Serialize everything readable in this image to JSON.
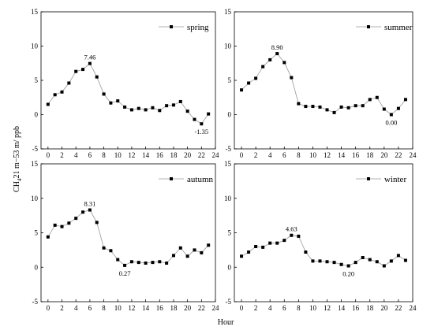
{
  "figure": {
    "shared_xlabel": "Hour",
    "shared_ylabel_main": "CH",
    "shared_ylabel_sub": "4",
    "shared_ylabel_rest": "21 m−53 m/ ppb"
  },
  "chart_data": [
    {
      "type": "line",
      "panel": "top-left",
      "series": [
        {
          "name": "spring",
          "x": [
            0,
            1,
            2,
            3,
            4,
            5,
            6,
            7,
            8,
            9,
            10,
            11,
            12,
            13,
            14,
            15,
            16,
            17,
            18,
            19,
            20,
            21,
            22,
            23
          ],
          "values": [
            1.5,
            2.9,
            3.3,
            4.6,
            6.3,
            6.6,
            7.46,
            5.5,
            3.0,
            1.7,
            2.0,
            1.1,
            0.7,
            0.9,
            0.7,
            1.0,
            0.6,
            1.3,
            1.4,
            1.9,
            0.5,
            -0.7,
            -1.35,
            0.1
          ]
        }
      ],
      "annotations": [
        {
          "x": 6,
          "y": 7.46,
          "text": "7.46"
        },
        {
          "x": 22,
          "y": -1.35,
          "text": "-1.35"
        }
      ],
      "xlim": [
        -1,
        24
      ],
      "ylim": [
        -5,
        15
      ],
      "xticks": [
        0,
        2,
        4,
        6,
        8,
        10,
        12,
        14,
        16,
        18,
        20,
        22,
        24
      ],
      "yticks": [
        -5,
        0,
        5,
        10,
        15
      ],
      "legend_position": "top-right",
      "marker_color": "#000000",
      "line_color": "#999999"
    },
    {
      "type": "line",
      "panel": "top-right",
      "series": [
        {
          "name": "summer",
          "x": [
            0,
            1,
            2,
            3,
            4,
            5,
            6,
            7,
            8,
            9,
            10,
            11,
            12,
            13,
            14,
            15,
            16,
            17,
            18,
            19,
            20,
            21,
            22,
            23
          ],
          "values": [
            3.6,
            4.6,
            5.3,
            7.0,
            8.0,
            8.9,
            7.6,
            5.4,
            1.6,
            1.2,
            1.2,
            1.1,
            0.7,
            0.3,
            1.1,
            1.0,
            1.3,
            1.3,
            2.2,
            2.5,
            0.8,
            0.0,
            0.9,
            2.2
          ]
        }
      ],
      "annotations": [
        {
          "x": 5,
          "y": 8.9,
          "text": "8.90"
        },
        {
          "x": 21,
          "y": 0.0,
          "text": "0.00"
        }
      ],
      "xlim": [
        -1,
        24
      ],
      "ylim": [
        -5,
        15
      ],
      "xticks": [
        0,
        2,
        4,
        6,
        8,
        10,
        12,
        14,
        16,
        18,
        20,
        22,
        24
      ],
      "yticks": [
        -5,
        0,
        5,
        10,
        15
      ],
      "legend_position": "top-right",
      "marker_color": "#000000",
      "line_color": "#999999"
    },
    {
      "type": "line",
      "panel": "bottom-left",
      "series": [
        {
          "name": "autumn",
          "x": [
            0,
            1,
            2,
            3,
            4,
            5,
            6,
            7,
            8,
            9,
            10,
            11,
            12,
            13,
            14,
            15,
            16,
            17,
            18,
            19,
            20,
            21,
            22,
            23
          ],
          "values": [
            4.4,
            6.1,
            5.9,
            6.4,
            7.1,
            8.0,
            8.31,
            6.5,
            2.8,
            2.4,
            1.1,
            0.27,
            0.8,
            0.7,
            0.6,
            0.7,
            0.8,
            0.6,
            1.7,
            2.8,
            1.6,
            2.5,
            2.1,
            3.2
          ]
        }
      ],
      "annotations": [
        {
          "x": 6,
          "y": 8.31,
          "text": "8.31"
        },
        {
          "x": 11,
          "y": 0.27,
          "text": "0.27"
        }
      ],
      "xlim": [
        -1,
        24
      ],
      "ylim": [
        -5,
        15
      ],
      "xticks": [
        0,
        2,
        4,
        6,
        8,
        10,
        12,
        14,
        16,
        18,
        20,
        22,
        24
      ],
      "yticks": [
        -5,
        0,
        5,
        10,
        15
      ],
      "legend_position": "top-right",
      "marker_color": "#000000",
      "line_color": "#999999"
    },
    {
      "type": "line",
      "panel": "bottom-right",
      "series": [
        {
          "name": "winter",
          "x": [
            0,
            1,
            2,
            3,
            4,
            5,
            6,
            7,
            8,
            9,
            10,
            11,
            12,
            13,
            14,
            15,
            16,
            17,
            18,
            19,
            20,
            21,
            22,
            23
          ],
          "values": [
            1.6,
            2.2,
            3.0,
            2.9,
            3.5,
            3.5,
            3.9,
            4.63,
            4.5,
            2.2,
            0.9,
            0.9,
            0.8,
            0.7,
            0.4,
            0.2,
            0.7,
            1.4,
            1.1,
            0.8,
            0.2,
            0.9,
            1.7,
            1.0
          ]
        }
      ],
      "annotations": [
        {
          "x": 7,
          "y": 4.63,
          "text": "4.63"
        },
        {
          "x": 15,
          "y": 0.2,
          "text": "0.20"
        }
      ],
      "xlim": [
        -1,
        24
      ],
      "ylim": [
        -5,
        15
      ],
      "xticks": [
        0,
        2,
        4,
        6,
        8,
        10,
        12,
        14,
        16,
        18,
        20,
        22,
        24
      ],
      "yticks": [
        -5,
        0,
        5,
        10,
        15
      ],
      "legend_position": "top-right",
      "marker_color": "#000000",
      "line_color": "#999999"
    }
  ]
}
